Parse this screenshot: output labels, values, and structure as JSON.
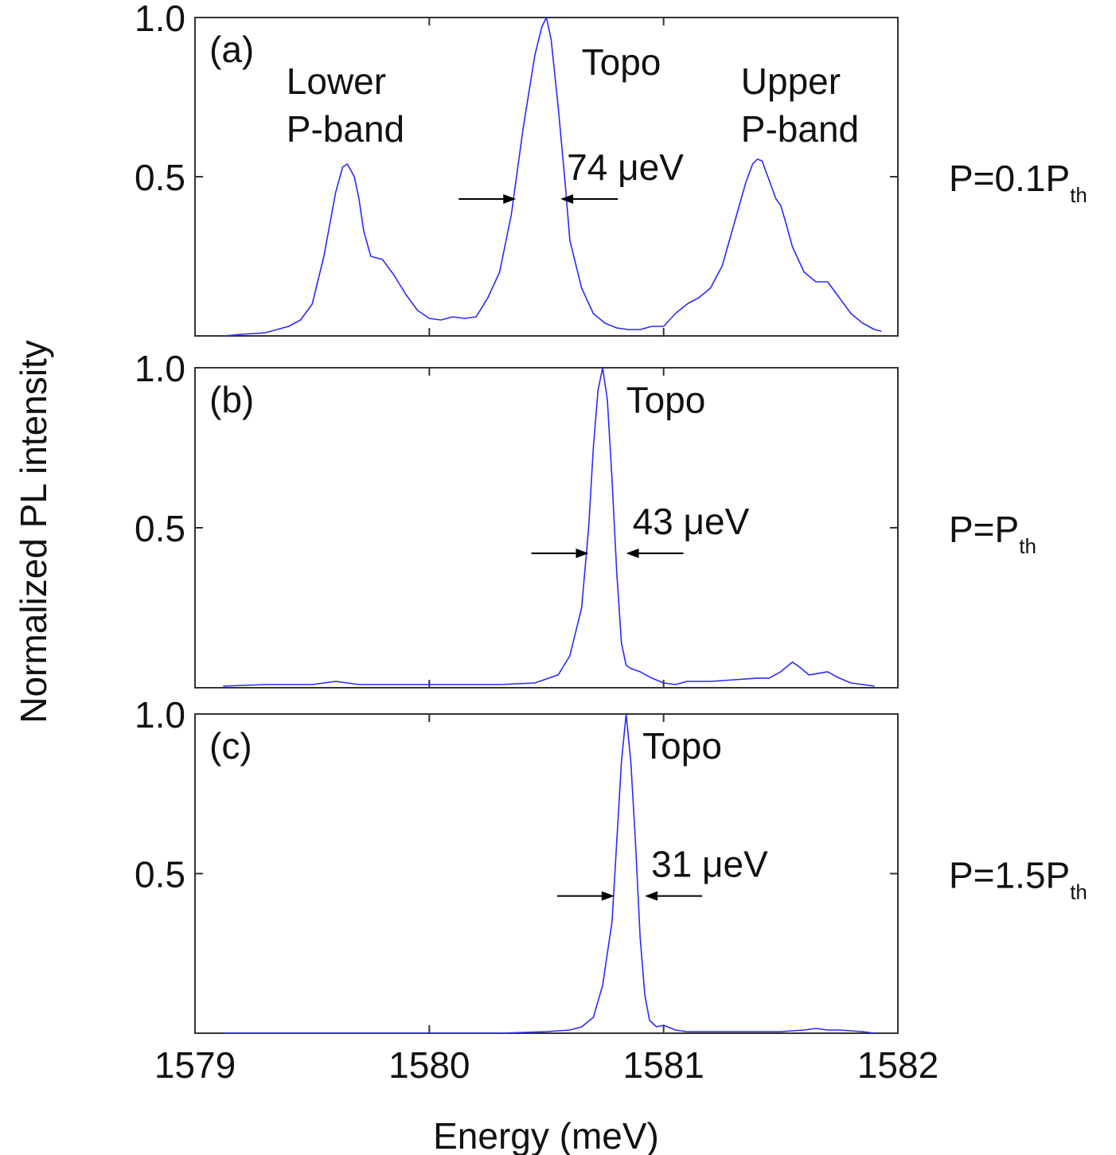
{
  "colors": {
    "series": "#2a2aff",
    "axis": "#333333",
    "text": "#111111"
  },
  "chart_data": {
    "type": "line",
    "xlabel": "Energy (meV)",
    "ylabel": "Normalized PL intensity",
    "xlim": [
      1579,
      1582
    ],
    "x_ticks": [
      1579,
      1580,
      1581,
      1582
    ],
    "x_tick_labels": [
      "1579",
      "1580",
      "1581",
      "1582"
    ],
    "shared_x_axis": true,
    "grid": false,
    "panels": [
      {
        "panel_label": "(a)",
        "power_label": "P=0.1P",
        "power_sub": "th",
        "ylim": [
          0,
          1.0
        ],
        "y_ticks": [
          0.5,
          1.0
        ],
        "y_tick_labels": [
          "0.5",
          "1.0"
        ],
        "linewidth_label": "74 μeV",
        "linewidth_arrows": {
          "left_x": 1580.37,
          "right_x": 1580.56,
          "y": 0.43
        },
        "annotations": [
          {
            "lines": [
              "Topo"
            ],
            "x": 1580.65,
            "y": 0.82
          },
          {
            "lines": [
              "Lower",
              "P-band"
            ],
            "x": 1579.39,
            "y": 0.76
          },
          {
            "lines": [
              "Upper",
              "P-band"
            ],
            "x": 1581.33,
            "y": 0.76
          }
        ],
        "series": [
          {
            "x": [
              1579.12,
              1579.2,
              1579.3,
              1579.4,
              1579.45,
              1579.5,
              1579.55,
              1579.6,
              1579.63,
              1579.65,
              1579.68,
              1579.7,
              1579.72,
              1579.75,
              1579.8,
              1579.85,
              1579.9,
              1579.95,
              1580.0,
              1580.05,
              1580.1,
              1580.15,
              1580.2,
              1580.25,
              1580.3,
              1580.35,
              1580.4,
              1580.45,
              1580.48,
              1580.5,
              1580.52,
              1580.55,
              1580.58,
              1580.6,
              1580.65,
              1580.7,
              1580.75,
              1580.8,
              1580.85,
              1580.9,
              1580.95,
              1581.0,
              1581.05,
              1581.1,
              1581.15,
              1581.2,
              1581.25,
              1581.3,
              1581.35,
              1581.38,
              1581.4,
              1581.42,
              1581.45,
              1581.48,
              1581.5,
              1581.52,
              1581.55,
              1581.6,
              1581.65,
              1581.7,
              1581.75,
              1581.8,
              1581.85,
              1581.9,
              1581.93
            ],
            "y": [
              0.0,
              0.005,
              0.01,
              0.03,
              0.05,
              0.1,
              0.25,
              0.45,
              0.53,
              0.54,
              0.5,
              0.43,
              0.33,
              0.25,
              0.24,
              0.19,
              0.13,
              0.08,
              0.055,
              0.05,
              0.06,
              0.055,
              0.06,
              0.12,
              0.2,
              0.38,
              0.65,
              0.88,
              0.97,
              1.0,
              0.93,
              0.72,
              0.48,
              0.3,
              0.15,
              0.07,
              0.04,
              0.025,
              0.02,
              0.02,
              0.03,
              0.03,
              0.07,
              0.1,
              0.12,
              0.15,
              0.22,
              0.35,
              0.48,
              0.54,
              0.555,
              0.55,
              0.49,
              0.43,
              0.41,
              0.36,
              0.28,
              0.2,
              0.17,
              0.17,
              0.12,
              0.07,
              0.04,
              0.02,
              0.015
            ]
          }
        ]
      },
      {
        "panel_label": "(b)",
        "power_label": "P=P",
        "power_sub": "th",
        "ylim": [
          0,
          1.0
        ],
        "y_ticks": [
          0.5,
          1.0
        ],
        "y_tick_labels": [
          "0.5",
          "1.0"
        ],
        "linewidth_label": "43 μeV",
        "linewidth_arrows": {
          "left_x": 1580.68,
          "right_x": 1580.84,
          "y": 0.42
        },
        "annotations": [
          {
            "lines": [
              "Topo"
            ],
            "x": 1580.84,
            "y": 0.86
          }
        ],
        "series": [
          {
            "x": [
              1579.12,
              1579.3,
              1579.5,
              1579.6,
              1579.7,
              1579.9,
              1580.1,
              1580.3,
              1580.45,
              1580.55,
              1580.6,
              1580.65,
              1580.68,
              1580.7,
              1580.72,
              1580.74,
              1580.76,
              1580.78,
              1580.8,
              1580.82,
              1580.84,
              1580.86,
              1580.9,
              1580.95,
              1581.0,
              1581.05,
              1581.1,
              1581.2,
              1581.3,
              1581.4,
              1581.45,
              1581.5,
              1581.55,
              1581.58,
              1581.62,
              1581.7,
              1581.75,
              1581.8,
              1581.9
            ],
            "y": [
              0.005,
              0.01,
              0.01,
              0.02,
              0.01,
              0.01,
              0.01,
              0.01,
              0.015,
              0.04,
              0.1,
              0.25,
              0.5,
              0.75,
              0.93,
              1.0,
              0.9,
              0.65,
              0.36,
              0.14,
              0.07,
              0.06,
              0.05,
              0.03,
              0.015,
              0.01,
              0.02,
              0.02,
              0.025,
              0.03,
              0.03,
              0.05,
              0.08,
              0.065,
              0.04,
              0.05,
              0.03,
              0.015,
              0.005
            ]
          }
        ]
      },
      {
        "panel_label": "(c)",
        "power_label": "P=1.5P",
        "power_sub": "th",
        "ylim": [
          0,
          1.0
        ],
        "y_ticks": [
          0.5,
          1.0
        ],
        "y_tick_labels": [
          "0.5",
          "1.0"
        ],
        "linewidth_label": "31 μeV",
        "linewidth_arrows": {
          "left_x": 1580.79,
          "right_x": 1580.92,
          "y": 0.43
        },
        "annotations": [
          {
            "lines": [
              "Topo"
            ],
            "x": 1580.91,
            "y": 0.86
          }
        ],
        "series": [
          {
            "x": [
              1579.12,
              1579.5,
              1580.0,
              1580.3,
              1580.5,
              1580.6,
              1580.65,
              1580.7,
              1580.74,
              1580.78,
              1580.8,
              1580.82,
              1580.84,
              1580.86,
              1580.88,
              1580.9,
              1580.92,
              1580.94,
              1580.97,
              1581.0,
              1581.05,
              1581.1,
              1581.3,
              1581.5,
              1581.6,
              1581.65,
              1581.7,
              1581.75,
              1581.85,
              1581.9
            ],
            "y": [
              0.0,
              0.0,
              0.0,
              0.0,
              0.005,
              0.01,
              0.02,
              0.05,
              0.15,
              0.35,
              0.6,
              0.85,
              1.0,
              0.85,
              0.6,
              0.3,
              0.12,
              0.04,
              0.02,
              0.025,
              0.01,
              0.005,
              0.005,
              0.005,
              0.01,
              0.015,
              0.01,
              0.01,
              0.005,
              0.0
            ]
          }
        ]
      }
    ]
  }
}
